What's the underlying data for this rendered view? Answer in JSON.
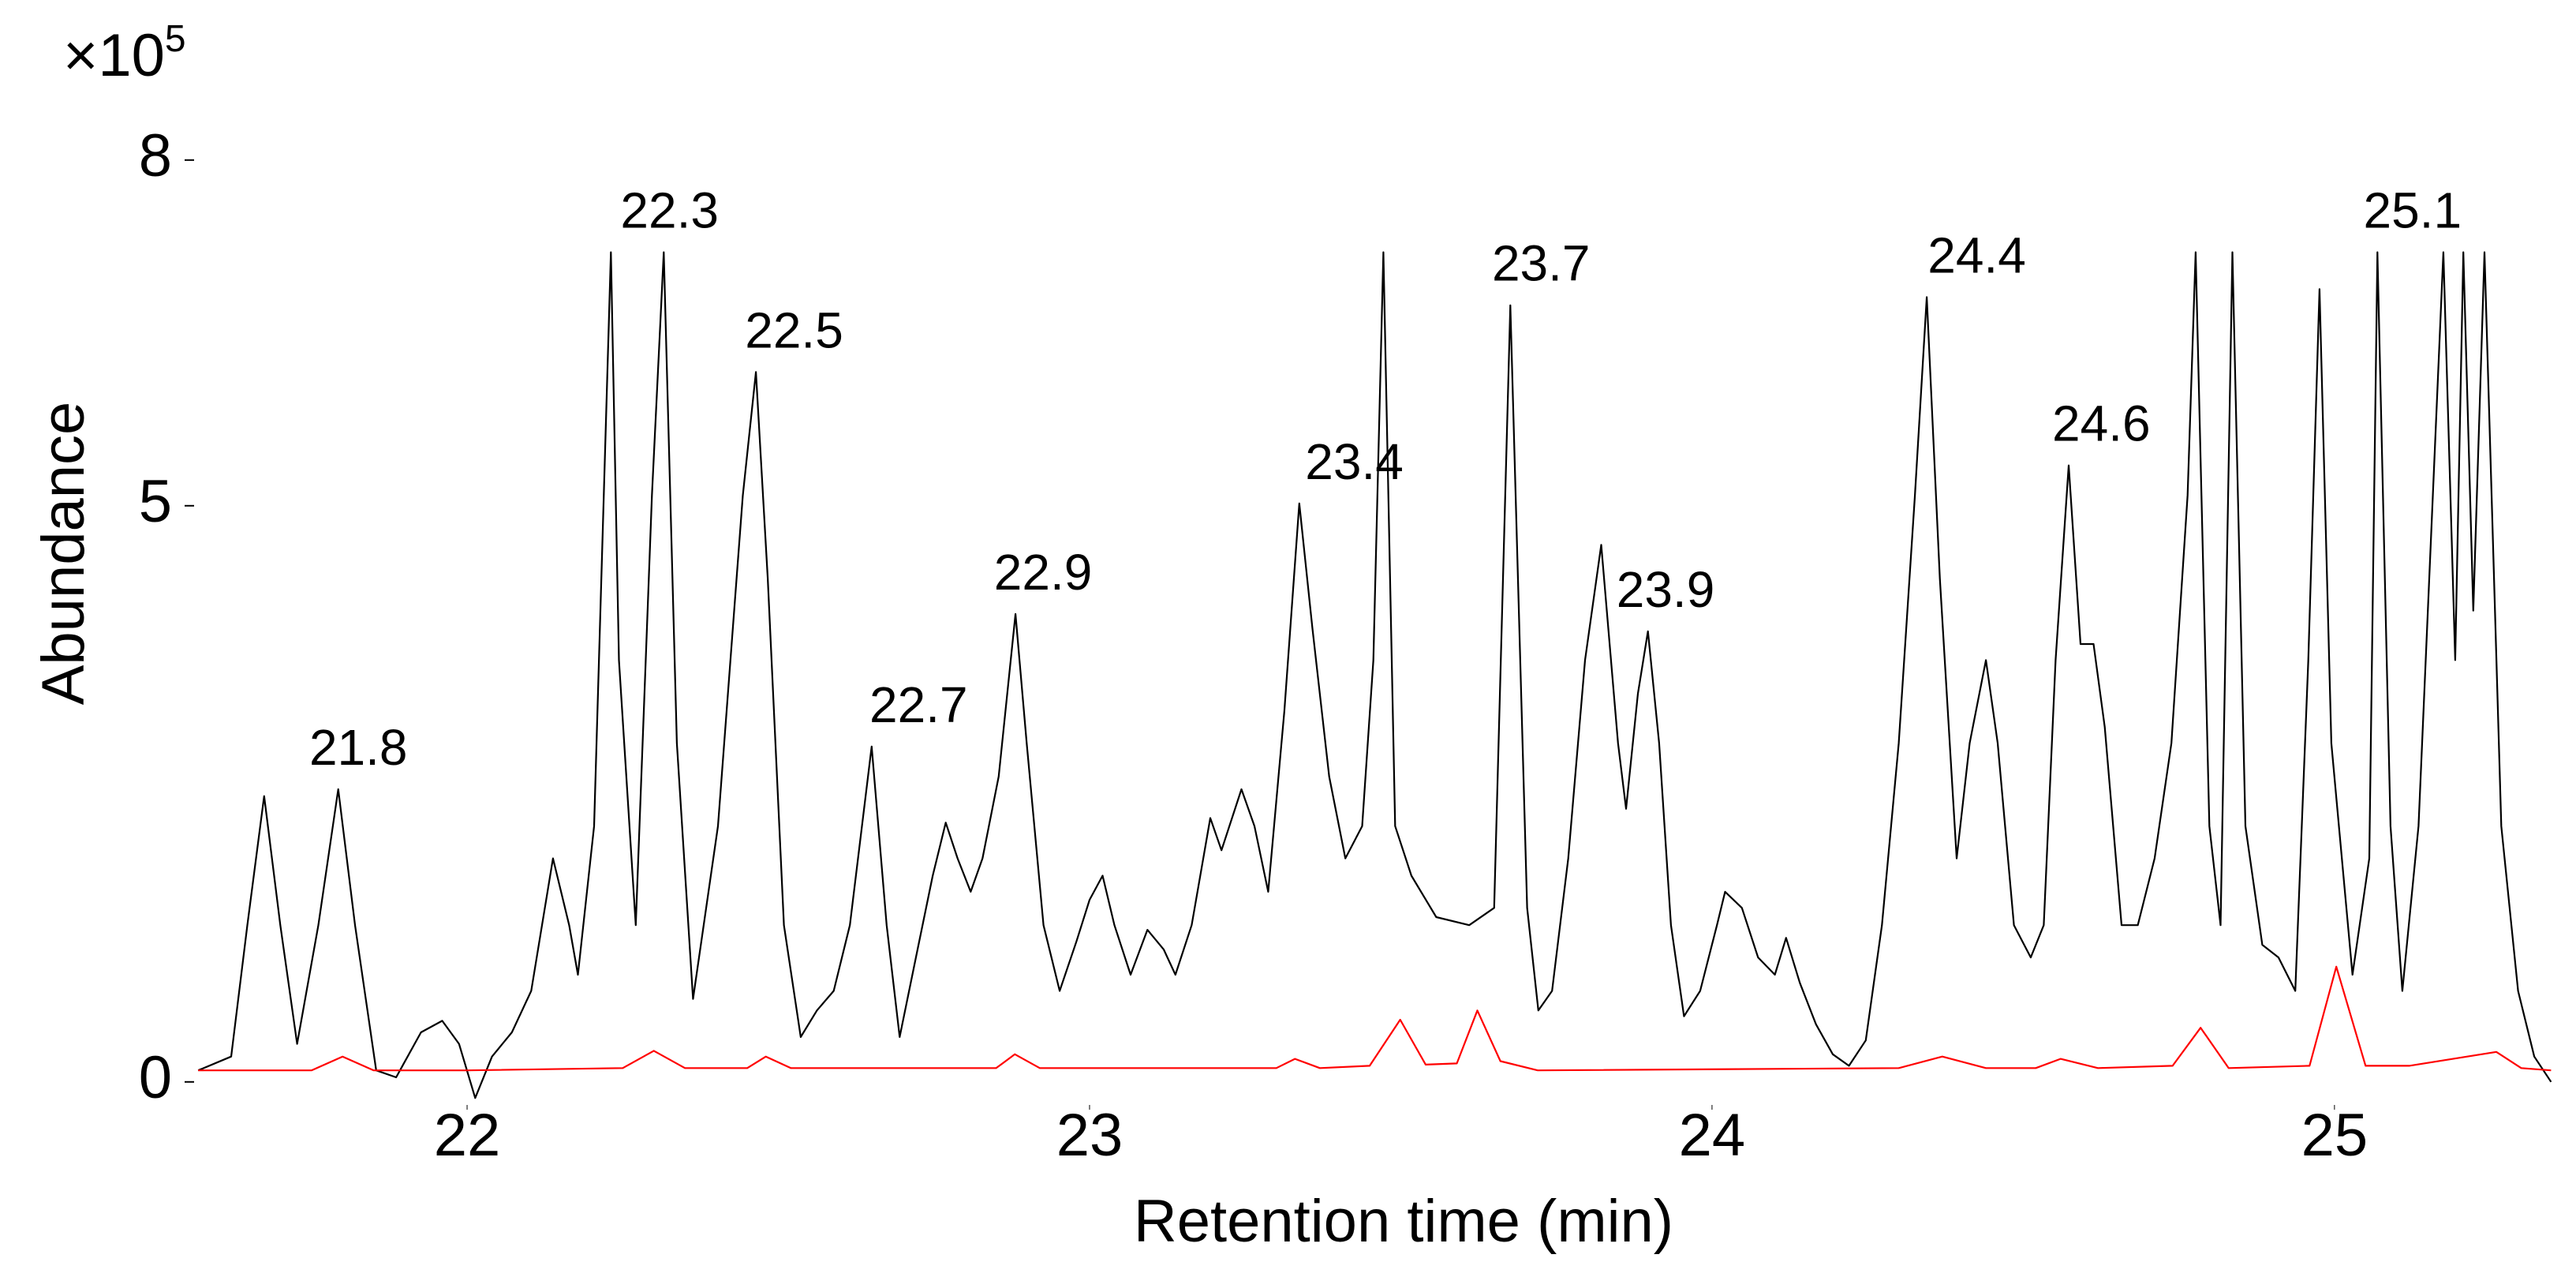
{
  "chart_data": {
    "type": "line",
    "x_label": "Retention time (min)",
    "y_label": "Abundance",
    "y_multiplier": {
      "base": "×10",
      "exponent": "5"
    },
    "xlim": [
      21.55,
      25.35
    ],
    "xticks": [
      22,
      23,
      24,
      25
    ],
    "ylim": [
      -0.2,
      8.8
    ],
    "yticks": [
      0,
      5,
      8
    ],
    "grid": false,
    "peak_labels": [
      21.8,
      22.3,
      22.5,
      22.7,
      22.9,
      23.4,
      23.7,
      23.9,
      24.4,
      24.6,
      25.1
    ],
    "series": [
      {
        "color": "#000000",
        "x": [
          21.568,
          21.621,
          21.647,
          21.674,
          21.7,
          21.727,
          21.761,
          21.793,
          21.82,
          21.854,
          21.886,
          21.926,
          21.96,
          21.987,
          22.013,
          22.04,
          22.072,
          22.103,
          22.138,
          22.164,
          22.178,
          22.204,
          22.231,
          22.244,
          22.271,
          22.297,
          22.316,
          22.337,
          22.363,
          22.403,
          22.443,
          22.464,
          22.483,
          22.509,
          22.536,
          22.562,
          22.589,
          22.615,
          22.65,
          22.674,
          22.695,
          22.721,
          22.748,
          22.769,
          22.788,
          22.809,
          22.828,
          22.854,
          22.881,
          22.899,
          22.926,
          22.952,
          22.979,
          23.0,
          23.021,
          23.04,
          23.066,
          23.093,
          23.119,
          23.138,
          23.164,
          23.194,
          23.212,
          23.244,
          23.265,
          23.287,
          23.313,
          23.337,
          23.358,
          23.385,
          23.411,
          23.438,
          23.456,
          23.472,
          23.491,
          23.517,
          23.557,
          23.61,
          23.65,
          23.676,
          23.703,
          23.721,
          23.743,
          23.769,
          23.796,
          23.822,
          23.849,
          23.862,
          23.881,
          23.897,
          23.915,
          23.934,
          23.955,
          23.981,
          24.008,
          24.021,
          24.048,
          24.074,
          24.101,
          24.119,
          24.141,
          24.167,
          24.194,
          24.22,
          24.247,
          24.273,
          24.3,
          24.326,
          24.345,
          24.366,
          24.393,
          24.414,
          24.44,
          24.459,
          24.485,
          24.512,
          24.533,
          24.552,
          24.573,
          24.592,
          24.613,
          24.631,
          24.658,
          24.684,
          24.711,
          24.738,
          24.764,
          24.777,
          24.799,
          24.817,
          24.836,
          24.857,
          24.884,
          24.91,
          24.937,
          24.958,
          24.976,
          24.995,
          25.029,
          25.056,
          25.069,
          25.09,
          25.109,
          25.135,
          25.175,
          25.194,
          25.207,
          25.223,
          25.241,
          25.268,
          25.295,
          25.321,
          25.348
        ],
        "values": [
          0.1,
          0.22,
          1.36,
          2.48,
          1.36,
          0.33,
          1.36,
          2.54,
          1.36,
          0.1,
          0.04,
          0.43,
          0.53,
          0.33,
          -0.14,
          0.22,
          0.43,
          0.79,
          1.94,
          1.36,
          0.93,
          2.22,
          7.2,
          3.66,
          1.36,
          5.09,
          7.2,
          2.94,
          0.72,
          2.22,
          5.09,
          6.16,
          4.37,
          1.36,
          0.39,
          0.62,
          0.79,
          1.36,
          2.91,
          1.36,
          0.39,
          1.08,
          1.79,
          2.25,
          1.94,
          1.65,
          1.94,
          2.65,
          4.06,
          2.94,
          1.36,
          0.79,
          1.22,
          1.58,
          1.79,
          1.36,
          0.93,
          1.32,
          1.15,
          0.93,
          1.36,
          2.29,
          2.01,
          2.54,
          2.22,
          1.65,
          3.22,
          5.02,
          3.94,
          2.65,
          1.94,
          2.22,
          3.66,
          7.2,
          2.22,
          1.79,
          1.43,
          1.36,
          1.51,
          6.74,
          1.51,
          0.62,
          0.79,
          1.94,
          3.66,
          4.66,
          2.94,
          2.37,
          3.37,
          3.91,
          2.94,
          1.36,
          0.57,
          0.79,
          1.36,
          1.65,
          1.51,
          1.08,
          0.93,
          1.25,
          0.86,
          0.5,
          0.24,
          0.14,
          0.36,
          1.36,
          2.94,
          5.09,
          6.81,
          4.37,
          1.94,
          2.94,
          3.66,
          2.94,
          1.36,
          1.08,
          1.36,
          3.66,
          5.35,
          3.8,
          3.8,
          3.08,
          1.36,
          1.36,
          1.94,
          2.94,
          5.09,
          7.2,
          2.22,
          1.36,
          7.2,
          2.22,
          1.19,
          1.08,
          0.79,
          3.66,
          6.88,
          2.94,
          0.93,
          1.94,
          7.2,
          2.22,
          0.79,
          2.22,
          7.2,
          3.66,
          7.2,
          4.09,
          7.2,
          2.22,
          0.79,
          0.22,
          0.0
        ]
      },
      {
        "color": "#ff0000",
        "x": [
          21.568,
          21.75,
          21.8,
          21.85,
          22.0,
          22.25,
          22.3,
          22.35,
          22.45,
          22.48,
          22.52,
          22.85,
          22.88,
          22.92,
          23.3,
          23.33,
          23.37,
          23.45,
          23.499,
          23.54,
          23.59,
          23.623,
          23.66,
          23.72,
          24.3,
          24.37,
          24.44,
          24.52,
          24.56,
          24.62,
          24.74,
          24.785,
          24.83,
          24.96,
          25.003,
          25.05,
          25.12,
          25.26,
          25.3,
          25.348
        ],
        "values": [
          0.1,
          0.1,
          0.22,
          0.1,
          0.1,
          0.12,
          0.27,
          0.12,
          0.12,
          0.22,
          0.12,
          0.12,
          0.24,
          0.12,
          0.12,
          0.2,
          0.12,
          0.14,
          0.54,
          0.15,
          0.16,
          0.62,
          0.18,
          0.1,
          0.12,
          0.22,
          0.12,
          0.12,
          0.2,
          0.12,
          0.14,
          0.47,
          0.12,
          0.14,
          1.0,
          0.14,
          0.14,
          0.26,
          0.12,
          0.1
        ]
      }
    ]
  }
}
